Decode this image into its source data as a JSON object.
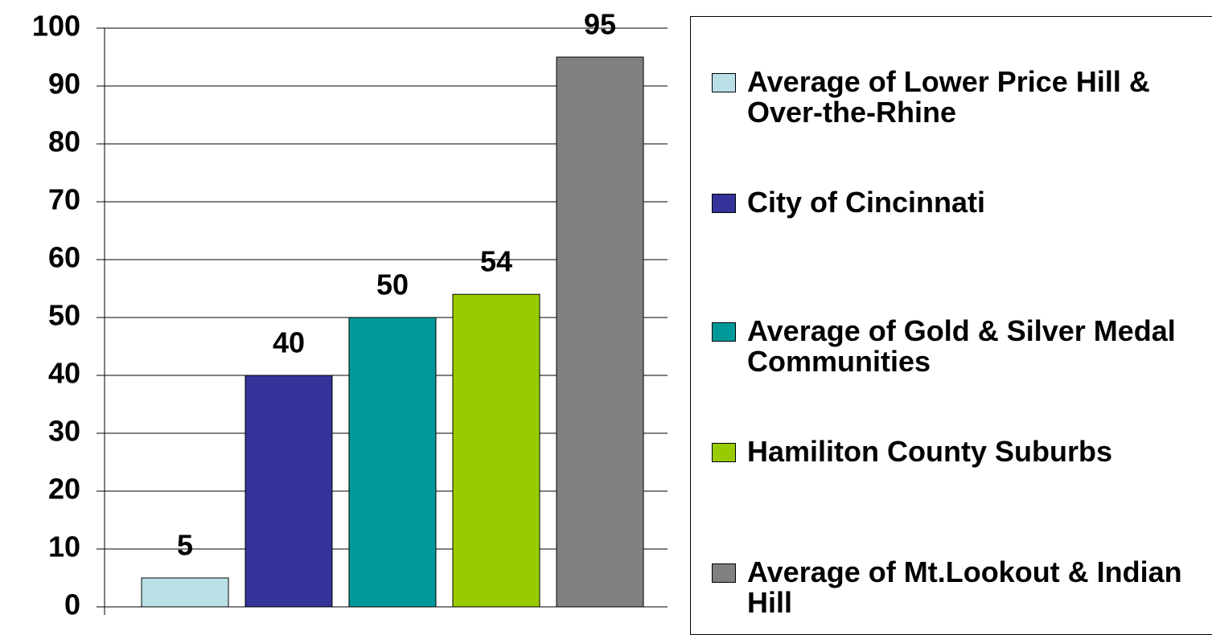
{
  "chart_data": {
    "type": "bar",
    "categories": [
      null
    ],
    "series": [
      {
        "name": "Average of Lower Price Hill & Over-the-Rhine",
        "color": "#b8e0e6",
        "values": [
          5
        ]
      },
      {
        "name": "City of Cincinnati",
        "color": "#333399",
        "values": [
          40
        ]
      },
      {
        "name": "Average of Gold & Silver Medal Communities",
        "color": "#009999",
        "values": [
          50
        ]
      },
      {
        "name": "Hamiliton County Suburbs",
        "color": "#99cc00",
        "values": [
          54
        ]
      },
      {
        "name": "Average of Mt.Lookout & Indian Hill",
        "color": "#808080",
        "values": [
          95
        ]
      }
    ],
    "ylim": [
      0,
      100
    ],
    "yticks": [
      0,
      10,
      20,
      30,
      40,
      50,
      60,
      70,
      80,
      90,
      100
    ],
    "grid": true,
    "legend": "right"
  }
}
